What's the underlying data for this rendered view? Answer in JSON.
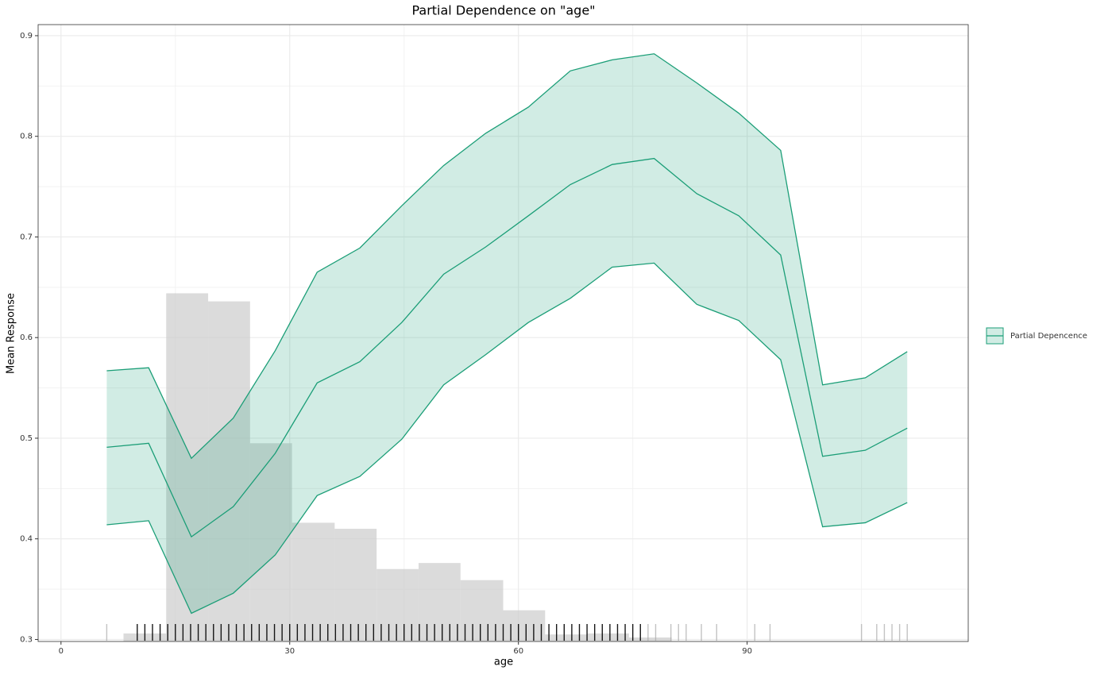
{
  "chart_data": {
    "type": "line",
    "title": "Partial Dependence on \"age\"",
    "xlabel": "age",
    "ylabel": "Mean Response",
    "x": [
      6,
      11.5,
      17.1,
      22.6,
      28.1,
      33.6,
      39.2,
      44.7,
      50.2,
      55.7,
      61.3,
      66.8,
      72.3,
      77.8,
      83.4,
      88.9,
      94.4,
      99.9,
      105.5,
      111.0
    ],
    "series": [
      {
        "name": "Partial Depencence",
        "color": "#1b9e77",
        "values": [
          0.491,
          0.495,
          0.402,
          0.432,
          0.485,
          0.555,
          0.576,
          0.615,
          0.663,
          0.69,
          0.721,
          0.752,
          0.772,
          0.778,
          0.743,
          0.721,
          0.682,
          0.482,
          0.488,
          0.51
        ],
        "upper": [
          0.567,
          0.57,
          0.48,
          0.52,
          0.587,
          0.665,
          0.689,
          0.731,
          0.771,
          0.803,
          0.829,
          0.865,
          0.876,
          0.882,
          0.853,
          0.823,
          0.786,
          0.553,
          0.56,
          0.586
        ],
        "lower": [
          0.414,
          0.418,
          0.326,
          0.346,
          0.384,
          0.443,
          0.462,
          0.499,
          0.553,
          0.583,
          0.615,
          0.639,
          0.67,
          0.674,
          0.633,
          0.617,
          0.578,
          0.412,
          0.416,
          0.436
        ]
      }
    ],
    "histogram": {
      "color": "#cccccc",
      "bins": [
        8.2,
        13.8,
        19.3,
        24.8,
        30.3,
        35.9,
        41.4,
        46.9,
        52.4,
        58.0,
        63.5,
        69.0,
        74.5,
        80.1
      ],
      "values": [
        0.306,
        0.644,
        0.636,
        0.495,
        0.416,
        0.41,
        0.37,
        0.376,
        0.359,
        0.329,
        0.305,
        0.306,
        0.302
      ]
    },
    "rug": {
      "color": "#000000",
      "x": [
        10,
        11,
        12,
        13,
        14,
        15,
        16,
        17,
        18,
        19,
        20,
        21,
        22,
        23,
        24,
        25,
        26,
        27,
        28,
        29,
        30,
        31,
        32,
        33,
        34,
        35,
        36,
        37,
        38,
        39,
        40,
        41,
        42,
        43,
        44,
        45,
        46,
        47,
        48,
        49,
        50,
        51,
        52,
        53,
        54,
        55,
        56,
        57,
        58,
        59,
        60,
        61,
        62,
        63,
        64,
        65,
        66,
        67,
        68,
        69,
        70,
        71,
        72,
        73,
        74,
        75,
        76
      ]
    },
    "rug_sparse": {
      "color": "#aaaaaa",
      "x": [
        6,
        77,
        78,
        80,
        81,
        82,
        84,
        86,
        91,
        93,
        105,
        107,
        108,
        109,
        110,
        111
      ]
    },
    "xlim": [
      -3,
      119
    ],
    "ylim": [
      0.298,
      0.911
    ],
    "xticks": [
      0,
      30,
      60,
      90
    ],
    "yticks": [
      0.3,
      0.4,
      0.5,
      0.6,
      0.7,
      0.8,
      0.9
    ],
    "xminor": [
      15,
      45,
      75,
      105
    ],
    "yminor": [
      0.35,
      0.45,
      0.55,
      0.65,
      0.75,
      0.85
    ],
    "grid": true,
    "legend": "right"
  }
}
